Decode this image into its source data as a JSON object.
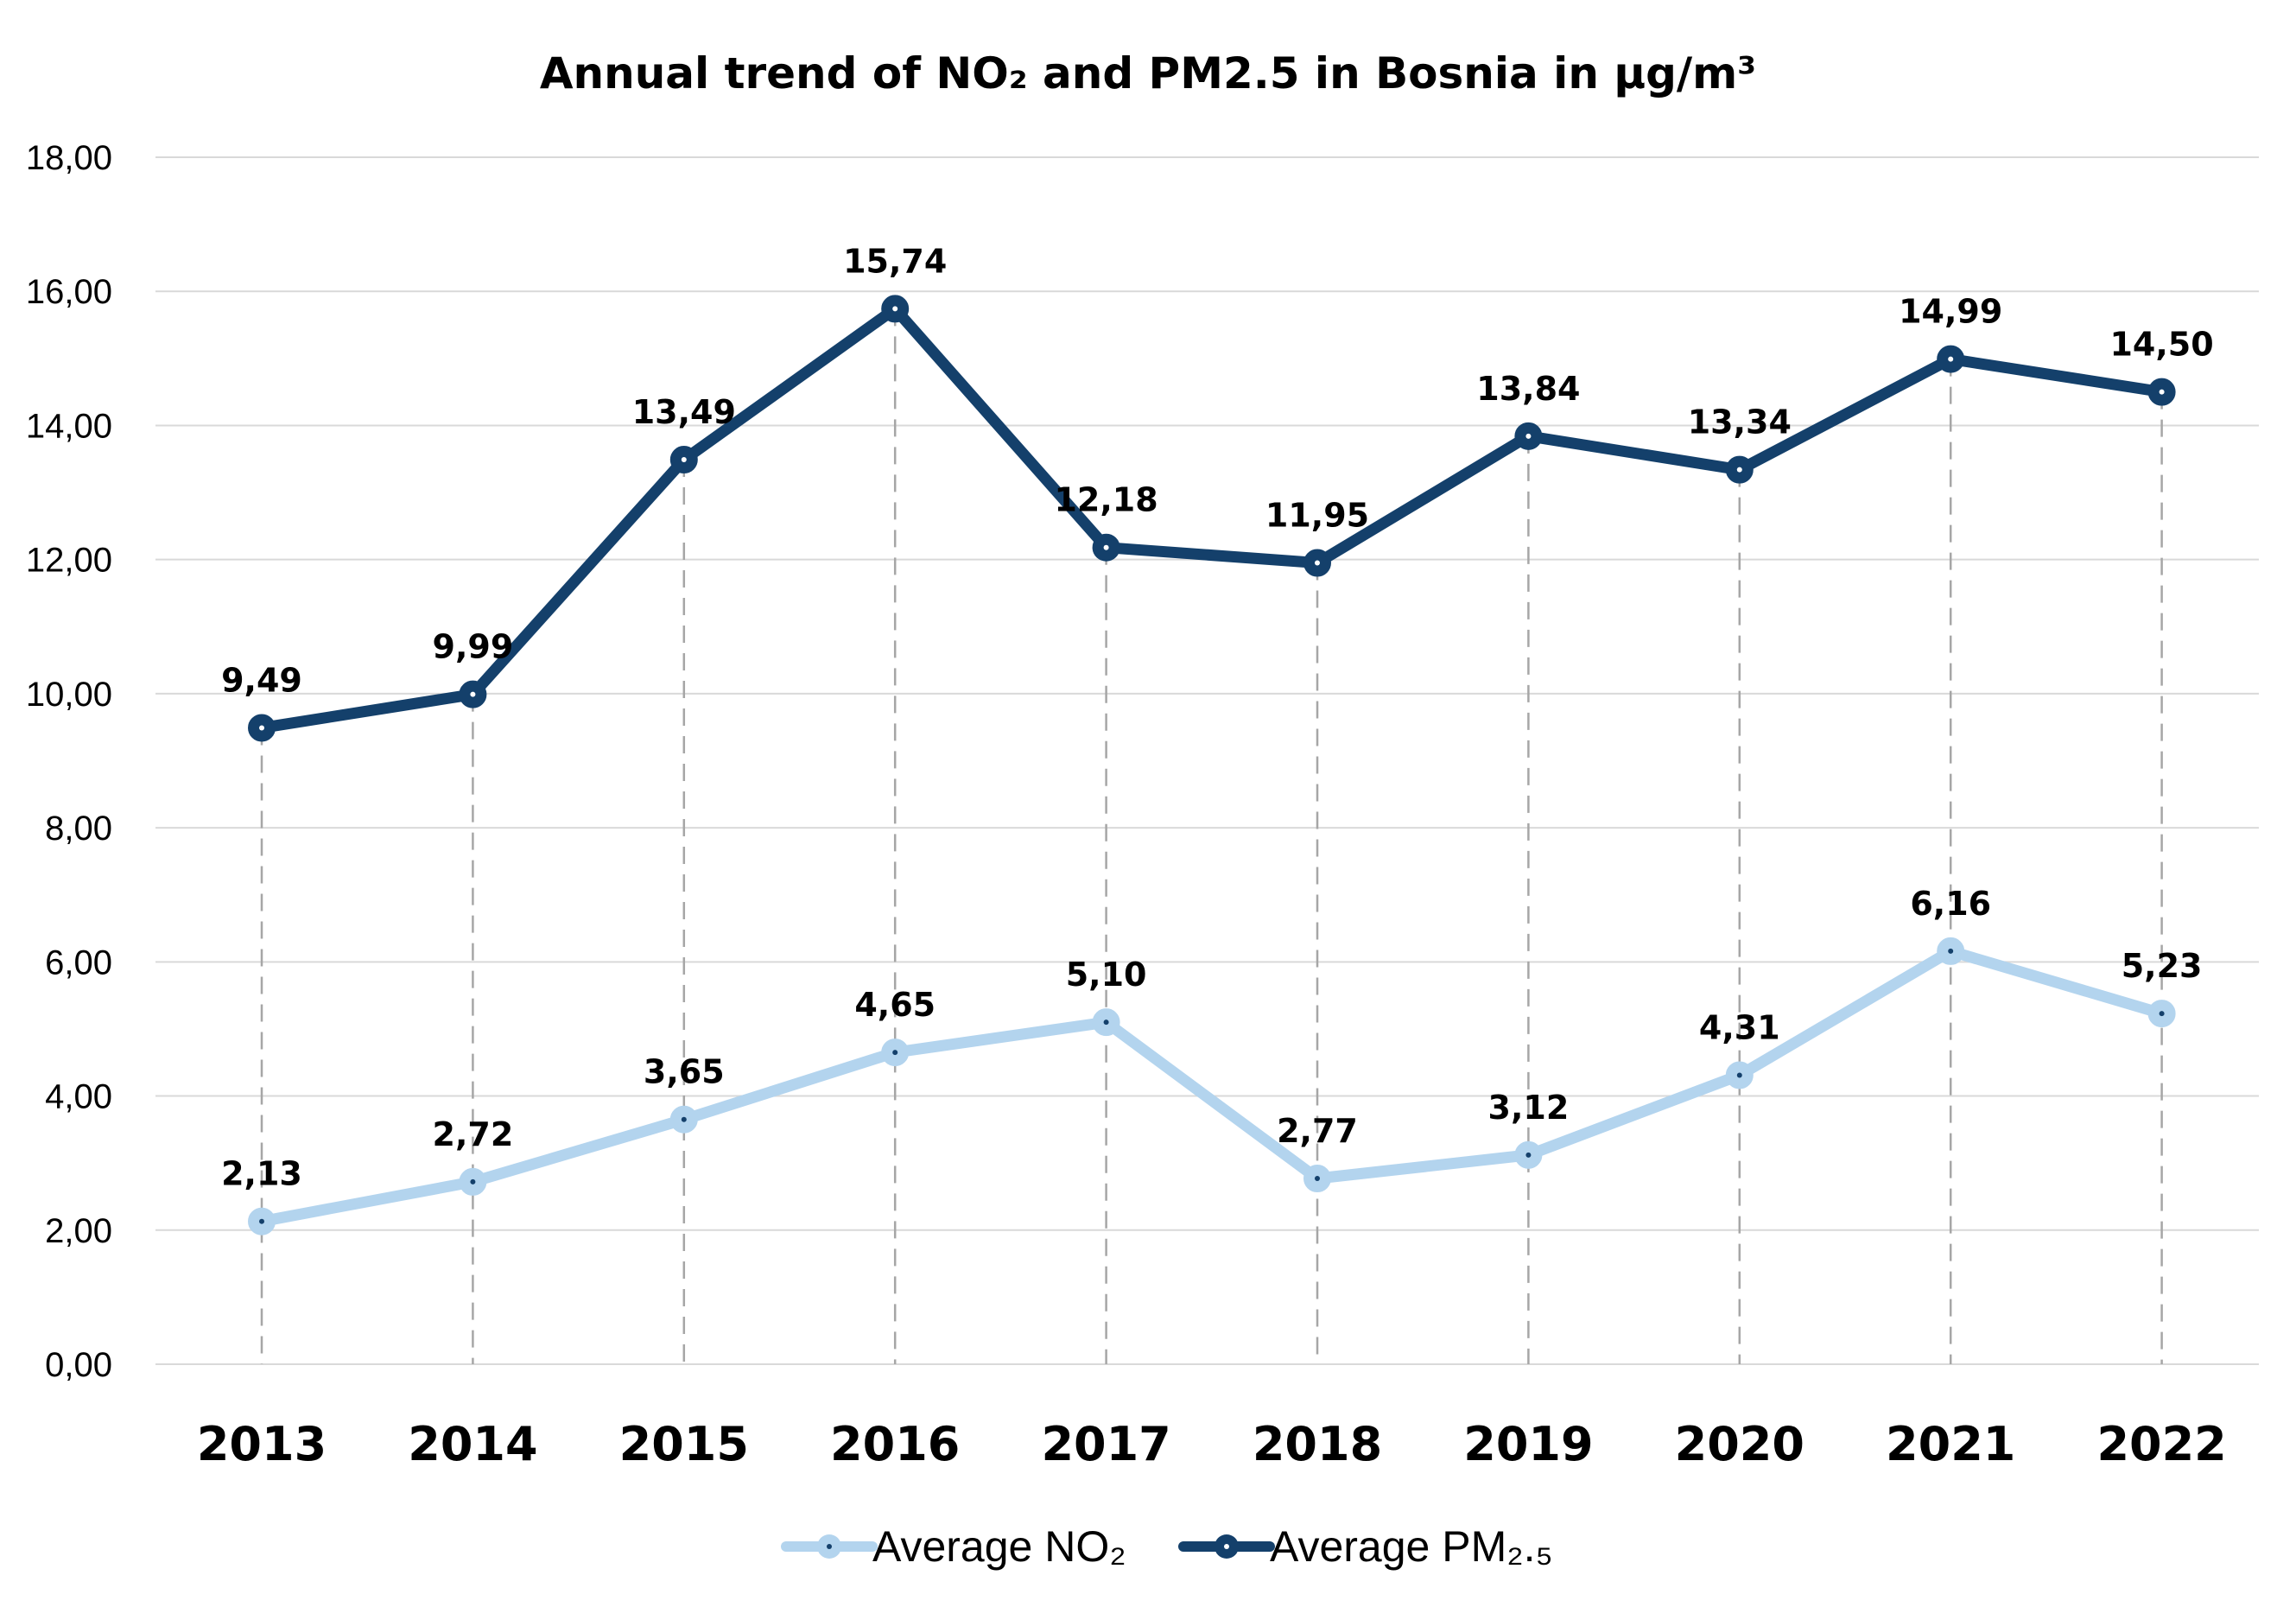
{
  "chart_data": {
    "type": "line",
    "title": "Annual trend of NO₂ and PM2.5 in Bosnia in µg/m³",
    "categories": [
      "2013",
      "2014",
      "2015",
      "2016",
      "2017",
      "2018",
      "2019",
      "2020",
      "2021",
      "2022"
    ],
    "series": [
      {
        "name": "Average NO₂",
        "values": [
          2.13,
          2.72,
          3.65,
          4.65,
          5.1,
          2.77,
          3.12,
          4.31,
          6.16,
          5.23
        ],
        "labels": [
          "2,13",
          "2,72",
          "3,65",
          "4,65",
          "5,10",
          "2,77",
          "3,12",
          "4,31",
          "6,16",
          "5,23"
        ],
        "color": "#b3d4ee"
      },
      {
        "name": "Average PM₂.₅",
        "values": [
          9.49,
          9.99,
          13.49,
          15.74,
          12.18,
          11.95,
          13.84,
          13.34,
          14.99,
          14.5
        ],
        "labels": [
          "9,49",
          "9,99",
          "13,49",
          "15,74",
          "12,18",
          "11,95",
          "13,84",
          "13,34",
          "14,99",
          "14,50"
        ],
        "color": "#14406b"
      }
    ],
    "ylim": [
      0,
      18
    ],
    "yticks": [
      0,
      2,
      4,
      6,
      8,
      10,
      12,
      14,
      16,
      18
    ],
    "ytick_labels": [
      "0,00",
      "2,00",
      "4,00",
      "6,00",
      "8,00",
      "10,00",
      "12,00",
      "14,00",
      "16,00",
      "18,00"
    ],
    "grid": true,
    "drop_lines": true,
    "legend": "bottom-center",
    "xlabel": "",
    "ylabel": ""
  }
}
